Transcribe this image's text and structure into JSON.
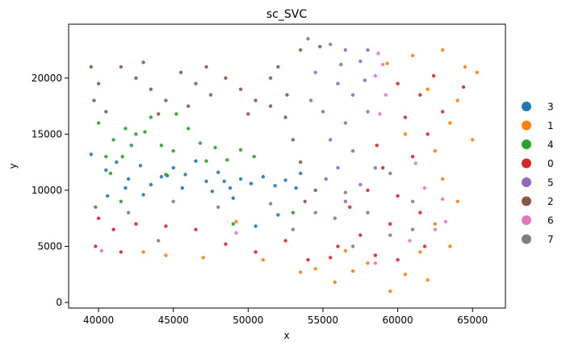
{
  "chart_data": {
    "type": "scatter",
    "title": "sc_SVC",
    "xlabel": "x",
    "ylabel": "y",
    "xlim": [
      38000,
      67200
    ],
    "ylim": [
      -500,
      24800
    ],
    "x_ticks": [
      40000,
      45000,
      50000,
      55000,
      60000,
      65000
    ],
    "y_ticks": [
      0,
      5000,
      10000,
      15000,
      20000
    ],
    "grid": false,
    "legend_position": "right",
    "series": [
      {
        "name": "3",
        "color": "#1f77b4",
        "points": [
          [
            39500,
            13200
          ],
          [
            40500,
            11800
          ],
          [
            41200,
            12500
          ],
          [
            42000,
            11000
          ],
          [
            42800,
            12200
          ],
          [
            43500,
            10500
          ],
          [
            44200,
            11200
          ],
          [
            45000,
            12000
          ],
          [
            45800,
            11400
          ],
          [
            46500,
            12600
          ],
          [
            47200,
            10800
          ],
          [
            48000,
            11600
          ],
          [
            48800,
            10200
          ],
          [
            49500,
            11000
          ],
          [
            50200,
            10600
          ],
          [
            51000,
            11200
          ],
          [
            51800,
            10400
          ],
          [
            52500,
            10900
          ],
          [
            53200,
            10200
          ],
          [
            44600,
            11300
          ],
          [
            47600,
            9900
          ],
          [
            52000,
            7800
          ],
          [
            50500,
            6800
          ],
          [
            49000,
            9300
          ],
          [
            48400,
            10800
          ],
          [
            43000,
            9600
          ],
          [
            41800,
            10200
          ],
          [
            40600,
            9500
          ],
          [
            45600,
            10200
          ],
          [
            53500,
            11500
          ]
        ]
      },
      {
        "name": "1",
        "color": "#ff7f0e",
        "points": [
          [
            61000,
            22000
          ],
          [
            63000,
            22500
          ],
          [
            64500,
            21000
          ],
          [
            62000,
            19000
          ],
          [
            64000,
            18000
          ],
          [
            63500,
            16000
          ],
          [
            65000,
            14500
          ],
          [
            62500,
            13500
          ],
          [
            60500,
            15000
          ],
          [
            63000,
            11000
          ],
          [
            64000,
            9000
          ],
          [
            62500,
            7000
          ],
          [
            63500,
            5000
          ],
          [
            61500,
            4500
          ],
          [
            60500,
            2500
          ],
          [
            59500,
            1000
          ],
          [
            62000,
            2000
          ],
          [
            57000,
            2800
          ],
          [
            55800,
            1800
          ],
          [
            54500,
            3000
          ],
          [
            53500,
            2700
          ],
          [
            43000,
            4500
          ],
          [
            44500,
            4200
          ],
          [
            47000,
            4000
          ],
          [
            49200,
            7200
          ],
          [
            51000,
            3800
          ],
          [
            56500,
            4600
          ],
          [
            58000,
            3500
          ],
          [
            65300,
            20500
          ],
          [
            59300,
            21300
          ]
        ]
      },
      {
        "name": "4",
        "color": "#2ca02c",
        "points": [
          [
            40000,
            16000
          ],
          [
            41000,
            14500
          ],
          [
            41800,
            15500
          ],
          [
            42500,
            15000
          ],
          [
            43500,
            16500
          ],
          [
            44200,
            14000
          ],
          [
            45000,
            13500
          ],
          [
            46000,
            15500
          ],
          [
            46800,
            14200
          ],
          [
            47800,
            13800
          ],
          [
            48600,
            12700
          ],
          [
            49500,
            13600
          ],
          [
            50400,
            13000
          ],
          [
            40500,
            13000
          ],
          [
            40800,
            11500
          ],
          [
            41500,
            9000
          ],
          [
            39800,
            8500
          ],
          [
            44500,
            11400
          ],
          [
            42200,
            14000
          ],
          [
            43100,
            15200
          ],
          [
            49000,
            7000
          ],
          [
            53000,
            8000
          ],
          [
            47200,
            12600
          ],
          [
            45200,
            16800
          ],
          [
            41600,
            13000
          ]
        ]
      },
      {
        "name": "0",
        "color": "#d62728",
        "points": [
          [
            60000,
            19500
          ],
          [
            61500,
            18500
          ],
          [
            63000,
            17000
          ],
          [
            60500,
            16500
          ],
          [
            62000,
            15000
          ],
          [
            61000,
            13000
          ],
          [
            59000,
            12000
          ],
          [
            58000,
            10000
          ],
          [
            60000,
            9500
          ],
          [
            61500,
            8000
          ],
          [
            59500,
            7000
          ],
          [
            57500,
            6000
          ],
          [
            56000,
            5000
          ],
          [
            58500,
            4200
          ],
          [
            60000,
            3800
          ],
          [
            61800,
            5000
          ],
          [
            55500,
            4000
          ],
          [
            54000,
            3800
          ],
          [
            52500,
            5500
          ],
          [
            50500,
            4500
          ],
          [
            48500,
            5200
          ],
          [
            46500,
            6500
          ],
          [
            44500,
            6800
          ],
          [
            42500,
            7000
          ],
          [
            41000,
            6500
          ],
          [
            40000,
            7500
          ],
          [
            39800,
            5000
          ],
          [
            41500,
            4500
          ],
          [
            56800,
            8500
          ],
          [
            58600,
            14000
          ],
          [
            62400,
            20200
          ],
          [
            64400,
            19200
          ]
        ]
      },
      {
        "name": "5",
        "color": "#9467bd",
        "points": [
          [
            54000,
            23500
          ],
          [
            55500,
            23000
          ],
          [
            56500,
            22500
          ],
          [
            57500,
            21500
          ],
          [
            58000,
            22500
          ],
          [
            54500,
            20500
          ],
          [
            56000,
            19500
          ],
          [
            57000,
            18500
          ],
          [
            55000,
            17000
          ],
          [
            56500,
            16000
          ],
          [
            58000,
            17000
          ],
          [
            55500,
            14500
          ],
          [
            57000,
            13500
          ],
          [
            58500,
            12000
          ],
          [
            56000,
            12000
          ],
          [
            57500,
            10500
          ],
          [
            56500,
            9000
          ],
          [
            58000,
            8000
          ],
          [
            59500,
            6000
          ],
          [
            61000,
            6500
          ],
          [
            57000,
            5000
          ],
          [
            55800,
            7500
          ],
          [
            54200,
            18000
          ],
          [
            56200,
            21200
          ],
          [
            57800,
            19800
          ],
          [
            55200,
            11000
          ]
        ]
      },
      {
        "name": "2",
        "color": "#8c564b",
        "points": [
          [
            39500,
            21000
          ],
          [
            40000,
            19500
          ],
          [
            39700,
            18000
          ],
          [
            40500,
            17000
          ],
          [
            41500,
            21000
          ],
          [
            42500,
            20000
          ],
          [
            43500,
            19000
          ],
          [
            44500,
            18000
          ],
          [
            45500,
            20500
          ],
          [
            46500,
            19500
          ],
          [
            47500,
            18500
          ],
          [
            48500,
            20000
          ],
          [
            49500,
            19000
          ],
          [
            50500,
            18000
          ],
          [
            51500,
            17500
          ],
          [
            52500,
            16500
          ],
          [
            53000,
            14500
          ],
          [
            53500,
            12500
          ],
          [
            52000,
            21000
          ],
          [
            53500,
            22500
          ],
          [
            51500,
            20000
          ],
          [
            54500,
            10000
          ],
          [
            53800,
            9000
          ],
          [
            50000,
            16800
          ],
          [
            46000,
            17500
          ],
          [
            44000,
            16800
          ],
          [
            43000,
            21400
          ],
          [
            47200,
            21000
          ],
          [
            54800,
            22800
          ],
          [
            52600,
            18500
          ]
        ]
      },
      {
        "name": "6",
        "color": "#e377c2",
        "points": [
          [
            58700,
            22200
          ],
          [
            59000,
            21200
          ],
          [
            58500,
            20200
          ],
          [
            59200,
            18500
          ],
          [
            58800,
            16800
          ],
          [
            61800,
            10200
          ],
          [
            63000,
            9200
          ],
          [
            62500,
            6500
          ],
          [
            60800,
            5500
          ],
          [
            58500,
            3500
          ],
          [
            40200,
            4600
          ],
          [
            49200,
            6200
          ],
          [
            61200,
            12400
          ],
          [
            63200,
            7200
          ]
        ]
      },
      {
        "name": "7",
        "color": "#7f7f7f",
        "points": [
          [
            42000,
            8000
          ],
          [
            45000,
            9000
          ],
          [
            48000,
            8500
          ],
          [
            51500,
            8800
          ],
          [
            54500,
            8000
          ],
          [
            56500,
            9800
          ],
          [
            59500,
            11500
          ],
          [
            61000,
            9000
          ],
          [
            44000,
            5500
          ],
          [
            53000,
            6500
          ]
        ]
      }
    ]
  }
}
